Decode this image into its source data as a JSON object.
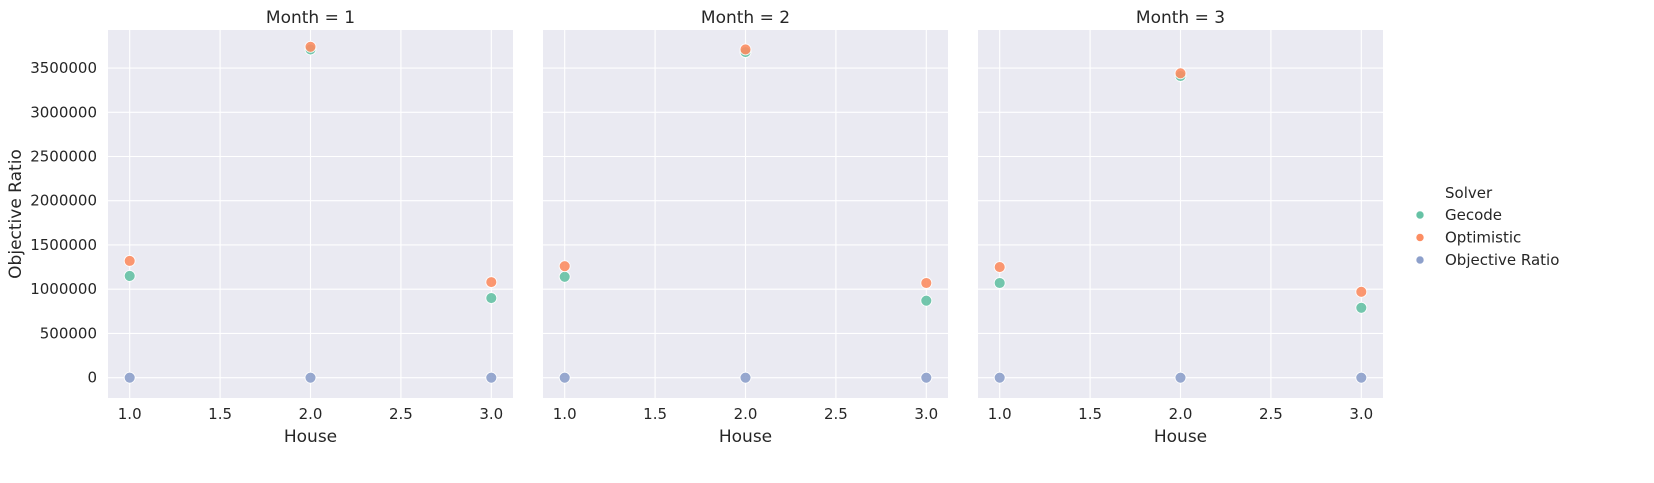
{
  "chart_data": {
    "type": "scatter",
    "ylabel": "Objective Ratio",
    "xlabel": "House",
    "xlim": [
      0.88,
      3.12
    ],
    "ylim": [
      -230000,
      3930000
    ],
    "xticks": [
      1.0,
      1.5,
      2.0,
      2.5,
      3.0
    ],
    "xtick_labels": [
      "1.0",
      "1.5",
      "2.0",
      "2.5",
      "3.0"
    ],
    "yticks": [
      0,
      500000,
      1000000,
      1500000,
      2000000,
      2500000,
      3000000,
      3500000
    ],
    "ytick_labels": [
      "0",
      "500000",
      "1000000",
      "1500000",
      "2000000",
      "2500000",
      "3000000",
      "3500000"
    ],
    "grid": true,
    "legend": {
      "title": "Solver",
      "placement": "right",
      "entries": [
        {
          "label": "Gecode",
          "color": "#66c2a5"
        },
        {
          "label": "Optimistic",
          "color": "#fc8d62"
        },
        {
          "label": "Objective Ratio",
          "color": "#8da0cb"
        }
      ]
    },
    "panels": [
      {
        "title": "Month = 1",
        "series": [
          {
            "name": "Gecode",
            "points": [
              [
                1.0,
                1150000
              ],
              [
                2.0,
                3710000
              ],
              [
                3.0,
                900000
              ]
            ]
          },
          {
            "name": "Optimistic",
            "points": [
              [
                1.0,
                1320000
              ],
              [
                2.0,
                3740000
              ],
              [
                3.0,
                1080000
              ]
            ]
          },
          {
            "name": "Objective Ratio",
            "points": [
              [
                1.0,
                1
              ],
              [
                2.0,
                1
              ],
              [
                3.0,
                1
              ]
            ]
          }
        ]
      },
      {
        "title": "Month = 2",
        "series": [
          {
            "name": "Gecode",
            "points": [
              [
                1.0,
                1140000
              ],
              [
                2.0,
                3680000
              ],
              [
                3.0,
                870000
              ]
            ]
          },
          {
            "name": "Optimistic",
            "points": [
              [
                1.0,
                1260000
              ],
              [
                2.0,
                3710000
              ],
              [
                3.0,
                1070000
              ]
            ]
          },
          {
            "name": "Objective Ratio",
            "points": [
              [
                1.0,
                1
              ],
              [
                2.0,
                1
              ],
              [
                3.0,
                1
              ]
            ]
          }
        ]
      },
      {
        "title": "Month = 3",
        "series": [
          {
            "name": "Gecode",
            "points": [
              [
                1.0,
                1070000
              ],
              [
                2.0,
                3410000
              ],
              [
                3.0,
                790000
              ]
            ]
          },
          {
            "name": "Optimistic",
            "points": [
              [
                1.0,
                1250000
              ],
              [
                2.0,
                3440000
              ],
              [
                3.0,
                970000
              ]
            ]
          },
          {
            "name": "Objective Ratio",
            "points": [
              [
                1.0,
                1
              ],
              [
                2.0,
                1
              ],
              [
                3.0,
                1
              ]
            ]
          }
        ]
      }
    ]
  }
}
